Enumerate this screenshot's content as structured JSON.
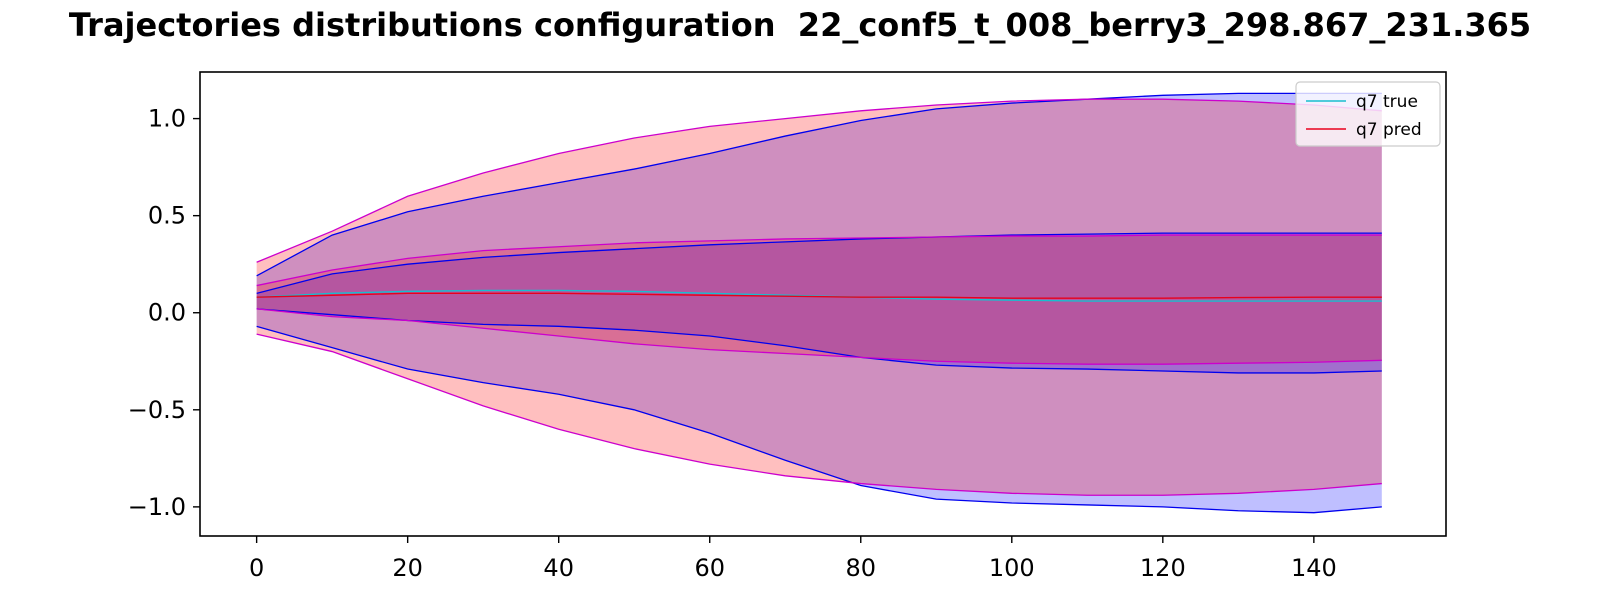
{
  "chart_data": {
    "type": "area",
    "title": "Trajectories distributions configuration  22_conf5_t_008_berry3_298.867_231.365",
    "xlabel": "",
    "ylabel": "",
    "xlim": [
      -7.5,
      157.5
    ],
    "ylim": [
      -1.15,
      1.24
    ],
    "x_ticks": [
      0,
      20,
      40,
      60,
      80,
      100,
      120,
      140
    ],
    "y_ticks": [
      -1.0,
      -0.5,
      0.0,
      0.5,
      1.0
    ],
    "grid": false,
    "legend_position": "top-right",
    "x": [
      0,
      10,
      20,
      30,
      40,
      50,
      60,
      70,
      80,
      90,
      100,
      110,
      120,
      130,
      140,
      149
    ],
    "series": [
      {
        "name": "q7 true",
        "color": "#17becf",
        "values": [
          0.08,
          0.1,
          0.11,
          0.115,
          0.115,
          0.11,
          0.1,
          0.09,
          0.08,
          0.07,
          0.065,
          0.06,
          0.06,
          0.06,
          0.06,
          0.06
        ],
        "band_inner_upper": [
          0.1,
          0.2,
          0.25,
          0.285,
          0.31,
          0.33,
          0.35,
          0.365,
          0.38,
          0.39,
          0.4,
          0.405,
          0.41,
          0.41,
          0.41,
          0.41
        ],
        "band_inner_lower": [
          0.02,
          -0.01,
          -0.04,
          -0.06,
          -0.07,
          -0.09,
          -0.12,
          -0.17,
          -0.23,
          -0.27,
          -0.285,
          -0.29,
          -0.3,
          -0.31,
          -0.31,
          -0.3
        ],
        "band_outer_upper": [
          0.19,
          0.4,
          0.52,
          0.6,
          0.67,
          0.74,
          0.82,
          0.91,
          0.99,
          1.05,
          1.08,
          1.1,
          1.12,
          1.13,
          1.13,
          1.13
        ],
        "band_outer_lower": [
          -0.07,
          -0.18,
          -0.29,
          -0.36,
          -0.42,
          -0.5,
          -0.62,
          -0.76,
          -0.89,
          -0.96,
          -0.98,
          -0.99,
          -1.0,
          -1.02,
          -1.03,
          -1.0
        ]
      },
      {
        "name": "q7 pred",
        "color": "#e8001c",
        "values": [
          0.08,
          0.09,
          0.1,
          0.1,
          0.1,
          0.095,
          0.09,
          0.085,
          0.08,
          0.08,
          0.075,
          0.075,
          0.075,
          0.078,
          0.08,
          0.08
        ],
        "band_inner_upper": [
          0.14,
          0.22,
          0.28,
          0.32,
          0.34,
          0.36,
          0.37,
          0.38,
          0.385,
          0.39,
          0.395,
          0.395,
          0.4,
          0.4,
          0.4,
          0.4
        ],
        "band_inner_lower": [
          0.02,
          -0.02,
          -0.04,
          -0.08,
          -0.12,
          -0.16,
          -0.19,
          -0.21,
          -0.23,
          -0.25,
          -0.26,
          -0.265,
          -0.265,
          -0.26,
          -0.255,
          -0.245
        ],
        "band_outer_upper": [
          0.26,
          0.42,
          0.6,
          0.72,
          0.82,
          0.9,
          0.96,
          1.0,
          1.04,
          1.07,
          1.09,
          1.1,
          1.1,
          1.09,
          1.07,
          1.04
        ],
        "band_outer_lower": [
          -0.11,
          -0.2,
          -0.34,
          -0.48,
          -0.6,
          -0.7,
          -0.78,
          -0.84,
          -0.88,
          -0.91,
          -0.93,
          -0.94,
          -0.94,
          -0.93,
          -0.91,
          -0.88
        ]
      }
    ],
    "colors": {
      "true_fill": "#0000ff",
      "true_edge": "#0000ee",
      "pred_fill": "#ff0000",
      "pred_edge": "#cc00cc"
    }
  }
}
